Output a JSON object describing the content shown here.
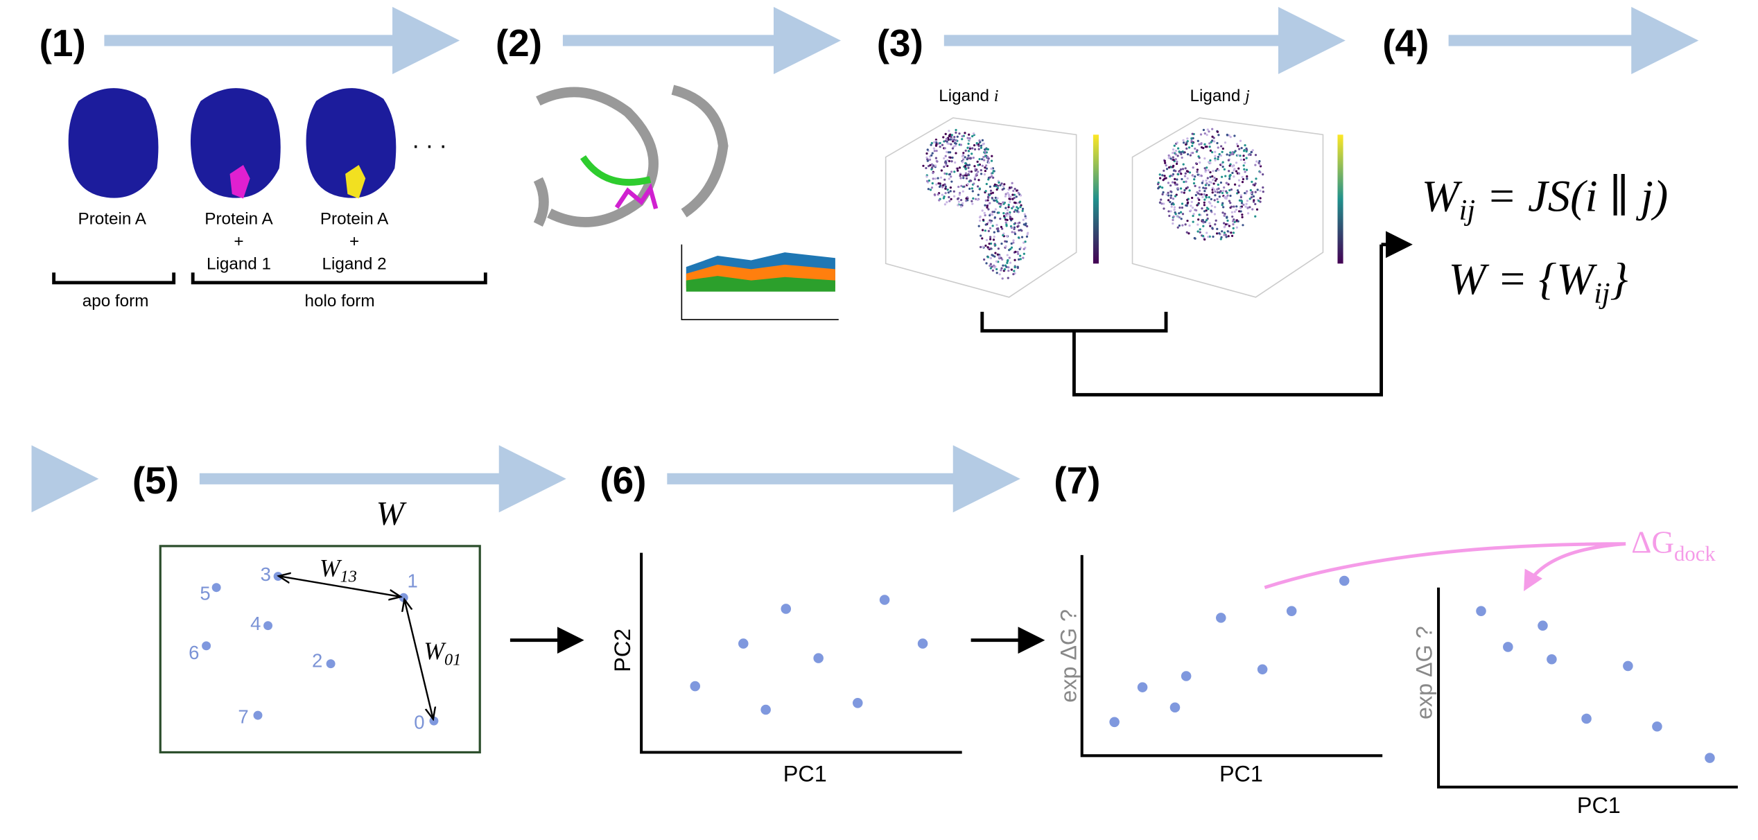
{
  "steps": [
    "(1)",
    "(2)",
    "(3)",
    "(4)",
    "(5)",
    "(6)",
    "(7)"
  ],
  "step1": {
    "apo": [
      "Protein A"
    ],
    "holo1": [
      "Protein A",
      "+",
      "Ligand 1"
    ],
    "holo2": [
      "Protein A",
      "+",
      "Ligand 2"
    ],
    "ellipsis": ". . .",
    "apo_label": "apo form",
    "holo_label": "holo form"
  },
  "step3": {
    "ligand_i": {
      "text": "Ligand ",
      "var": "i"
    },
    "ligand_j": {
      "text": "Ligand ",
      "var": "j"
    }
  },
  "step4": {
    "eq1": {
      "base": "W",
      "sub": "ij",
      "rest": " = JS(i ∥ j)"
    },
    "eq2": {
      "lhs": "W = {W",
      "sub": "ij",
      "rest": "}"
    }
  },
  "step5": {
    "title": "W",
    "nodes": [
      "0",
      "1",
      "2",
      "3",
      "4",
      "5",
      "6",
      "7"
    ],
    "edge_13": {
      "base": "W",
      "sub": "13"
    },
    "edge_01": {
      "base": "W",
      "sub": "01"
    }
  },
  "step6": {
    "x_label": "PC1",
    "y_label": "PC2"
  },
  "step7": {
    "x_label": "PC1",
    "y_label": "exp ΔG ?",
    "annotation": {
      "base": "ΔG",
      "sub": "dock"
    }
  }
}
